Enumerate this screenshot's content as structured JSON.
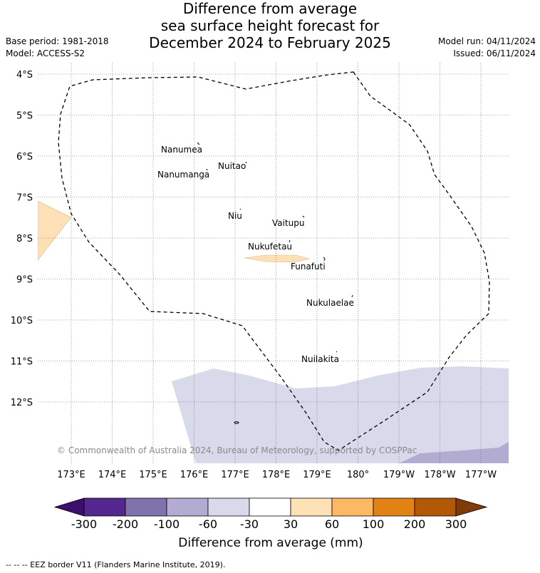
{
  "title": {
    "line1": "Difference from average",
    "line2": "sea surface height forecast for",
    "line3": "December 2024 to February 2025"
  },
  "meta_left": {
    "base_period": "Base period: 1981-2018",
    "model": "Model: ACCESS-S2"
  },
  "meta_right": {
    "model_run": "Model run: 04/11/2024",
    "issued": "Issued: 06/11/2024"
  },
  "lat_labels": [
    "4°S",
    "5°S",
    "6°S",
    "7°S",
    "8°S",
    "9°S",
    "10°S",
    "11°S",
    "12°S"
  ],
  "lon_labels": [
    "173°E",
    "174°E",
    "175°E",
    "176°E",
    "177°E",
    "178°E",
    "179°E",
    "180°",
    "179°W",
    "178°W",
    "177°W"
  ],
  "islands": [
    {
      "name": "Nanumea"
    },
    {
      "name": "Nuitao"
    },
    {
      "name": "Nanumanga"
    },
    {
      "name": "Niu"
    },
    {
      "name": "Vaitupu"
    },
    {
      "name": "Nukufetau"
    },
    {
      "name": "Funafuti"
    },
    {
      "name": "Nukulaelae"
    },
    {
      "name": "Nuilakita"
    }
  ],
  "copyright": "© Commonwealth of Australia 2024, Bureau of Meteorology, supported by COSPPac",
  "colorbar": {
    "ticks": [
      "-300",
      "-200",
      "-100",
      "-60",
      "-30",
      "30",
      "60",
      "100",
      "200",
      "300"
    ],
    "title": "Difference from average (mm)",
    "colors": {
      "under": "#3b0f6b",
      "c1": "#54278f",
      "c2": "#8073ac",
      "c3": "#b2abd2",
      "c4": "#d8daeb",
      "c5": "#ffffff",
      "c6": "#fee0b6",
      "c7": "#fdb863",
      "c8": "#e08214",
      "c9": "#b35806",
      "over": "#7f3b08"
    }
  },
  "footnote": "-- -- -- EEZ border V11 (Flanders Marine Institute, 2019)."
}
